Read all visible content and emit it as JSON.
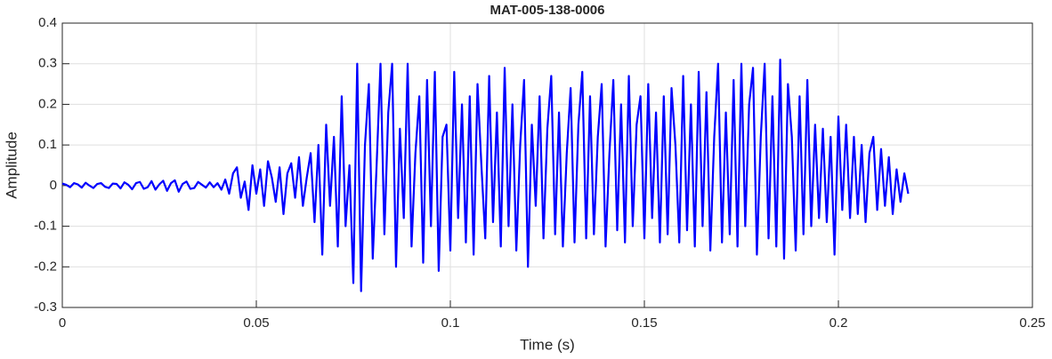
{
  "chart_data": {
    "type": "line",
    "title": "MAT-005-138-0006",
    "xlabel": "Time (s)",
    "ylabel": "Amplitude",
    "color": "#0000ff",
    "grid": true,
    "xlim": [
      0,
      0.25
    ],
    "xticks": [
      0,
      0.05,
      0.1,
      0.15,
      0.2,
      0.25
    ],
    "ylim": [
      -0.3,
      0.4
    ],
    "yticks": [
      -0.3,
      -0.2,
      -0.1,
      0,
      0.1,
      0.2,
      0.3,
      0.4
    ],
    "x": [
      0,
      0.001,
      0.002,
      0.003,
      0.004,
      0.005,
      0.006,
      0.007,
      0.008,
      0.009,
      0.01,
      0.011,
      0.012,
      0.013,
      0.014,
      0.015,
      0.016,
      0.017,
      0.018,
      0.019,
      0.02,
      0.021,
      0.022,
      0.023,
      0.024,
      0.025,
      0.026,
      0.027,
      0.028,
      0.029,
      0.03,
      0.031,
      0.032,
      0.033,
      0.034,
      0.035,
      0.036,
      0.037,
      0.038,
      0.039,
      0.04,
      0.041,
      0.042,
      0.043,
      0.044,
      0.045,
      0.046,
      0.047,
      0.048,
      0.049,
      0.05,
      0.051,
      0.052,
      0.053,
      0.054,
      0.055,
      0.056,
      0.057,
      0.058,
      0.059,
      0.06,
      0.061,
      0.062,
      0.063,
      0.064,
      0.065,
      0.066,
      0.067,
      0.068,
      0.069,
      0.07,
      0.071,
      0.072,
      0.073,
      0.074,
      0.075,
      0.076,
      0.077,
      0.078,
      0.079,
      0.08,
      0.081,
      0.082,
      0.083,
      0.084,
      0.085,
      0.086,
      0.087,
      0.088,
      0.089,
      0.09,
      0.091,
      0.092,
      0.093,
      0.094,
      0.095,
      0.096,
      0.097,
      0.098,
      0.099,
      0.1,
      0.101,
      0.102,
      0.103,
      0.104,
      0.105,
      0.106,
      0.107,
      0.108,
      0.109,
      0.11,
      0.111,
      0.112,
      0.113,
      0.114,
      0.115,
      0.116,
      0.117,
      0.118,
      0.119,
      0.12,
      0.121,
      0.122,
      0.123,
      0.124,
      0.125,
      0.126,
      0.127,
      0.128,
      0.129,
      0.13,
      0.131,
      0.132,
      0.133,
      0.134,
      0.135,
      0.136,
      0.137,
      0.138,
      0.139,
      0.14,
      0.141,
      0.142,
      0.143,
      0.144,
      0.145,
      0.146,
      0.147,
      0.148,
      0.149,
      0.15,
      0.151,
      0.152,
      0.153,
      0.154,
      0.155,
      0.156,
      0.157,
      0.158,
      0.159,
      0.16,
      0.161,
      0.162,
      0.163,
      0.164,
      0.165,
      0.166,
      0.167,
      0.168,
      0.169,
      0.17,
      0.171,
      0.172,
      0.173,
      0.174,
      0.175,
      0.176,
      0.177,
      0.178,
      0.179,
      0.18,
      0.181,
      0.182,
      0.183,
      0.184,
      0.185,
      0.186,
      0.187,
      0.188,
      0.189,
      0.19,
      0.191,
      0.192,
      0.193,
      0.194,
      0.195,
      0.196,
      0.197,
      0.198,
      0.199,
      0.2,
      0.201,
      0.202,
      0.203,
      0.204,
      0.205,
      0.206,
      0.207,
      0.208,
      0.209,
      0.21,
      0.211,
      0.212,
      0.213,
      0.214,
      0.215,
      0.216,
      0.217,
      0.218
    ],
    "values": [
      0.005,
      0.002,
      -0.004,
      0.006,
      0.003,
      -0.005,
      0.007,
      0,
      -0.006,
      0.004,
      0.006,
      -0.003,
      -0.006,
      0.005,
      0.004,
      -0.007,
      0.008,
      0.002,
      -0.009,
      0.006,
      0.009,
      -0.008,
      -0.004,
      0.011,
      -0.01,
      0.003,
      0.012,
      -0.013,
      0.006,
      0.013,
      -0.015,
      0.004,
      0.01,
      -0.008,
      -0.006,
      0.009,
      0.002,
      -0.005,
      0.008,
      -0.004,
      0.006,
      -0.01,
      0.015,
      -0.02,
      0.03,
      0.045,
      -0.03,
      0.01,
      -0.06,
      0.05,
      -0.02,
      0.04,
      -0.05,
      0.06,
      0.02,
      -0.04,
      0.045,
      -0.07,
      0.03,
      0.055,
      -0.03,
      0.07,
      -0.05,
      0.02,
      0.08,
      -0.09,
      0.1,
      -0.17,
      0.15,
      -0.05,
      0.12,
      -0.15,
      0.22,
      -0.1,
      0.05,
      -0.24,
      0.3,
      -0.26,
      0.1,
      0.25,
      -0.18,
      0.05,
      0.3,
      -0.12,
      0.18,
      0.3,
      -0.2,
      0.14,
      -0.08,
      0.3,
      -0.15,
      0.08,
      0.22,
      -0.19,
      0.26,
      -0.1,
      0.28,
      -0.21,
      0.12,
      0.15,
      -0.16,
      0.28,
      -0.08,
      0.2,
      -0.14,
      0.22,
      -0.17,
      0.25,
      0.05,
      -0.13,
      0.27,
      -0.09,
      0.18,
      -0.15,
      0.29,
      -0.1,
      0.2,
      -0.16,
      0.1,
      0.26,
      -0.2,
      0.15,
      -0.05,
      0.22,
      -0.13,
      0.14,
      0.27,
      -0.12,
      0.18,
      -0.15,
      0.08,
      0.24,
      -0.14,
      0.15,
      0.28,
      -0.13,
      0.22,
      -0.12,
      0.12,
      0.25,
      -0.15,
      0.08,
      0.26,
      -0.11,
      0.2,
      -0.14,
      0.27,
      -0.1,
      0.15,
      0.22,
      -0.13,
      0.25,
      -0.08,
      0.18,
      -0.14,
      0.22,
      -0.12,
      0.24,
      0.1,
      -0.14,
      0.27,
      -0.11,
      0.2,
      -0.15,
      0.28,
      -0.1,
      0.23,
      -0.16,
      0.12,
      0.3,
      -0.14,
      0.18,
      -0.12,
      0.26,
      -0.15,
      0.3,
      -0.1,
      0.2,
      0.29,
      -0.17,
      0.12,
      0.3,
      -0.13,
      0.22,
      -0.15,
      0.31,
      -0.18,
      0.25,
      0.12,
      -0.16,
      0.22,
      -0.12,
      0.26,
      -0.1,
      0.15,
      -0.08,
      0.14,
      -0.09,
      0.12,
      -0.17,
      0.17,
      -0.06,
      0.15,
      -0.08,
      0.12,
      -0.07,
      0.1,
      -0.09,
      0.08,
      0.12,
      -0.06,
      0.09,
      -0.05,
      0.07,
      -0.07,
      0.04,
      -0.04,
      0.03,
      -0.02
    ]
  }
}
